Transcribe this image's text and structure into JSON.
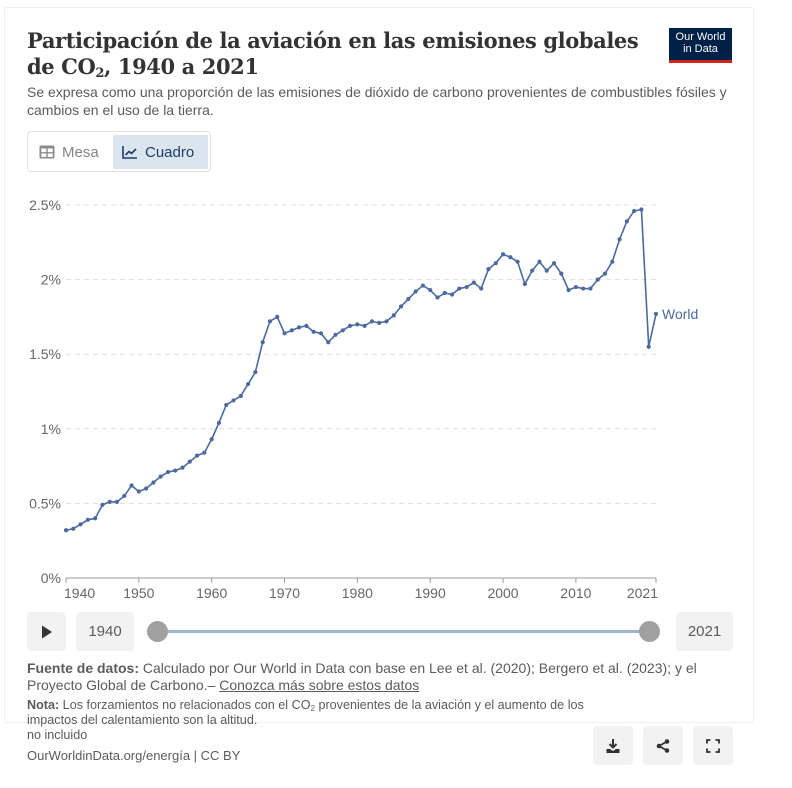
{
  "header": {
    "title_part1": "Participación de la aviación en las emisiones globales de CO",
    "title_sub": "2",
    "title_part2": ", 1940 a 2021",
    "subtitle": "Se expresa como una proporción de las emisiones de dióxido de carbono provenientes de combustibles fósiles y cambios en el uso de la tierra.",
    "logo_line1": "Our World",
    "logo_line2": "in Data"
  },
  "toggle": {
    "table_label": "Mesa",
    "chart_label": "Cuadro",
    "active": "chart"
  },
  "timeline": {
    "start_label": "1940",
    "end_label": "2021",
    "start_year": 1940,
    "end_year": 2021
  },
  "footer": {
    "source_label": "Fuente de datos:",
    "source_text": " Calculado por Our World in Data con base en Lee et al. (2020); Bergero et al. (2023); y el Proyecto Global de Carbono.– ",
    "source_link": "Conozca más sobre estos datos",
    "note_label": "Nota:",
    "note_text_a": " Los forzamientos no relacionados con el CO",
    "note_sub": "2",
    "note_text_b": " provenientes de la aviación y el aumento de los impactos del calentamiento son la altitud.",
    "note_extra": "no incluido",
    "url": "OurWorldinData.org/energía | CC BY"
  },
  "actions": {
    "download_icon": "download-icon",
    "share_icon": "share-icon",
    "fullscreen_icon": "fullscreen-icon"
  },
  "colors": {
    "series": "#4c6a9c",
    "logo_bg": "#002147",
    "logo_accent": "#ce261e",
    "active_tab_bg": "#dbe5f0"
  },
  "chart_data": {
    "type": "line",
    "title": "Participación de la aviación en las emisiones globales de CO₂, 1940 a 2021",
    "xlabel": "",
    "ylabel": "",
    "xlim": [
      1940,
      2021
    ],
    "ylim": [
      0,
      2.5
    ],
    "grid": true,
    "y_ticks": [
      0,
      0.5,
      1,
      1.5,
      2,
      2.5
    ],
    "y_tick_labels": [
      "0%",
      "0.5%",
      "1%",
      "1.5%",
      "2%",
      "2.5%"
    ],
    "x_ticks": [
      1940,
      1950,
      1960,
      1970,
      1980,
      1990,
      2000,
      2010,
      2021
    ],
    "x_tick_labels": [
      "1940",
      "1950",
      "1960",
      "1970",
      "1980",
      "1990",
      "2000",
      "2010",
      "2021"
    ],
    "legend": "end-of-line label",
    "series": [
      {
        "name": "World",
        "x": [
          1940,
          1941,
          1942,
          1943,
          1944,
          1945,
          1946,
          1947,
          1948,
          1949,
          1950,
          1951,
          1952,
          1953,
          1954,
          1955,
          1956,
          1957,
          1958,
          1959,
          1960,
          1961,
          1962,
          1963,
          1964,
          1965,
          1966,
          1967,
          1968,
          1969,
          1970,
          1971,
          1972,
          1973,
          1974,
          1975,
          1976,
          1977,
          1978,
          1979,
          1980,
          1981,
          1982,
          1983,
          1984,
          1985,
          1986,
          1987,
          1988,
          1989,
          1990,
          1991,
          1992,
          1993,
          1994,
          1995,
          1996,
          1997,
          1998,
          1999,
          2000,
          2001,
          2002,
          2003,
          2004,
          2005,
          2006,
          2007,
          2008,
          2009,
          2010,
          2011,
          2012,
          2013,
          2014,
          2015,
          2016,
          2017,
          2018,
          2019,
          2020,
          2021
        ],
        "values": [
          0.32,
          0.33,
          0.36,
          0.39,
          0.4,
          0.49,
          0.51,
          0.51,
          0.55,
          0.62,
          0.58,
          0.6,
          0.64,
          0.68,
          0.71,
          0.72,
          0.74,
          0.78,
          0.82,
          0.84,
          0.93,
          1.04,
          1.16,
          1.19,
          1.22,
          1.3,
          1.38,
          1.58,
          1.72,
          1.75,
          1.64,
          1.66,
          1.68,
          1.69,
          1.65,
          1.64,
          1.58,
          1.63,
          1.66,
          1.69,
          1.7,
          1.69,
          1.72,
          1.71,
          1.72,
          1.76,
          1.82,
          1.87,
          1.92,
          1.96,
          1.93,
          1.88,
          1.91,
          1.9,
          1.94,
          1.95,
          1.98,
          1.94,
          2.07,
          2.11,
          2.17,
          2.15,
          2.12,
          1.97,
          2.06,
          2.12,
          2.06,
          2.11,
          2.04,
          1.93,
          1.95,
          1.94,
          1.94,
          2.0,
          2.04,
          2.12,
          2.27,
          2.39,
          2.46,
          2.47,
          1.55,
          1.77
        ]
      }
    ]
  }
}
